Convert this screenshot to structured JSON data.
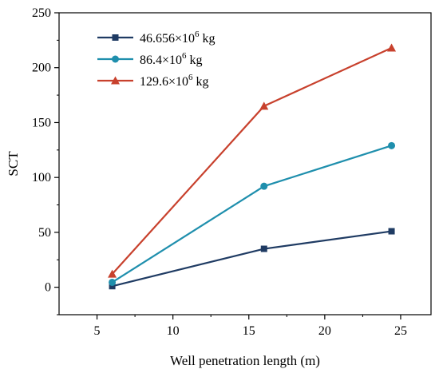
{
  "chart_data": {
    "type": "line",
    "xlabel": "Well penetration length (m)",
    "ylabel": "SCT",
    "xlim": [
      2.5,
      27.0
    ],
    "ylim": [
      -25,
      250
    ],
    "x_ticks": [
      5,
      10,
      15,
      20,
      25
    ],
    "y_ticks": [
      0,
      50,
      100,
      150,
      200,
      250
    ],
    "legend_position": "top-left",
    "grid": false,
    "series": [
      {
        "name": "46.656×10",
        "name_sup": "6",
        "name_suffix": " kg",
        "color": "#1f3b63",
        "marker": "square",
        "x": [
          6,
          16,
          24.4
        ],
        "y": [
          1,
          35,
          51
        ]
      },
      {
        "name": "86.4×10",
        "name_sup": "6",
        "name_suffix": " kg",
        "color": "#1f8fad",
        "marker": "circle",
        "x": [
          6,
          16,
          24.4
        ],
        "y": [
          4.5,
          92,
          129
        ]
      },
      {
        "name": "129.6×10",
        "name_sup": "6",
        "name_suffix": " kg",
        "color": "#c8412d",
        "marker": "triangle",
        "x": [
          6,
          16,
          24.4
        ],
        "y": [
          12,
          165,
          218
        ]
      }
    ]
  }
}
